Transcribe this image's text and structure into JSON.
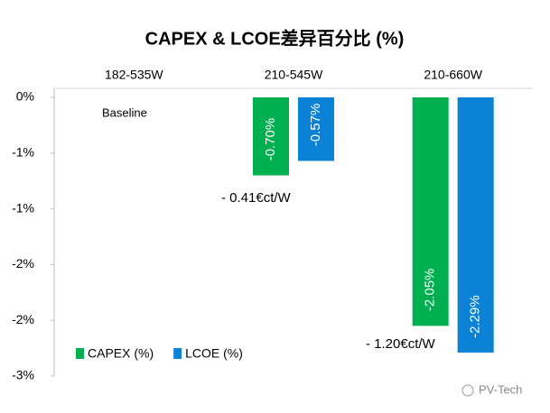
{
  "chart_data": {
    "type": "bar",
    "title": "CAPEX & LCOE差异百分比 (%)",
    "categories": [
      "182-535W",
      "210-545W",
      "210-660W"
    ],
    "series": [
      {
        "name": "CAPEX (%)",
        "color": "#00b050",
        "values": [
          null,
          -0.7,
          -2.05
        ],
        "value_labels": [
          null,
          "-0.70%",
          "-2.05%"
        ]
      },
      {
        "name": "LCOE (%)",
        "color": "#0b82d6",
        "values": [
          null,
          -0.57,
          -2.29
        ],
        "value_labels": [
          null,
          "-0.57%",
          "-2.29%"
        ]
      }
    ],
    "ylim": [
      0,
      -2.5
    ],
    "yticks": [
      {
        "value": 0,
        "label": "0%"
      },
      {
        "value": -0.5,
        "label": "-1%"
      },
      {
        "value": -1,
        "label": "-1%"
      },
      {
        "value": -1.5,
        "label": "-2%"
      },
      {
        "value": -2,
        "label": "-2%"
      },
      {
        "value": -2.5,
        "label": "-3%"
      }
    ],
    "grid": false,
    "legend": "lower left",
    "annotations": [
      "Baseline",
      "- 0.41€ct/W",
      "- 1.20€ct/W"
    ],
    "watermark": "PV-Tech"
  }
}
